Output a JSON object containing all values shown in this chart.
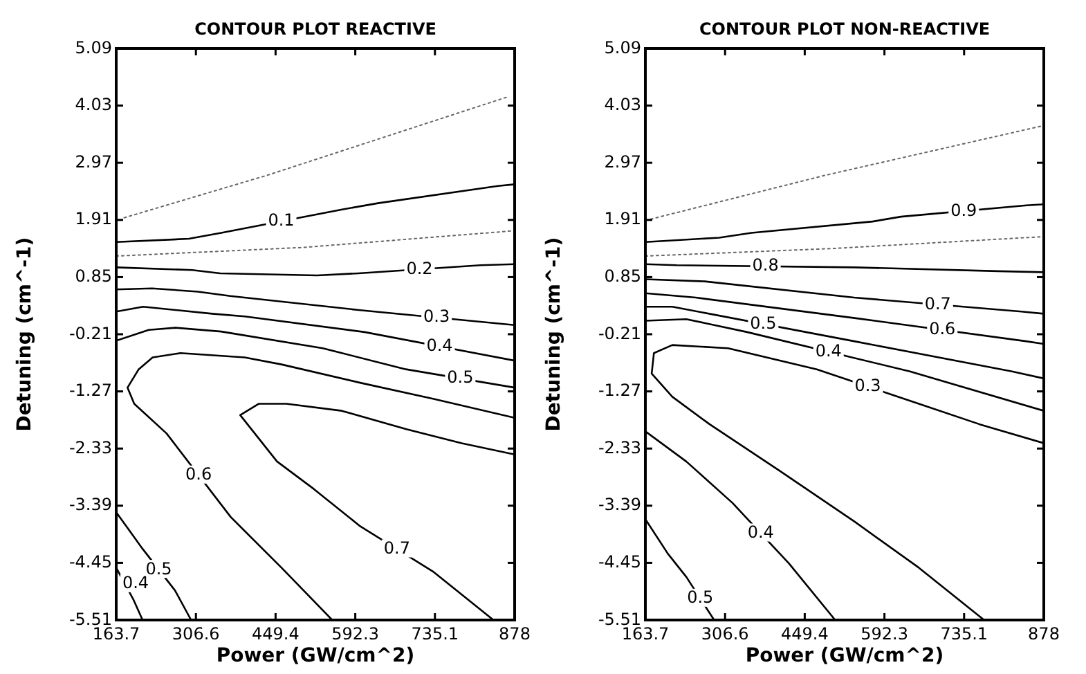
{
  "chart_data": [
    {
      "type": "line",
      "title": "CONTOUR PLOT REACTIVE",
      "xlabel": "Power (GW/cm^2)",
      "ylabel": "Detuning (cm^-1)",
      "xlim": [
        163.7,
        878
      ],
      "ylim": [
        -5.51,
        5.09
      ],
      "xticks": [
        163.7,
        306.6,
        449.4,
        592.3,
        735.1,
        878
      ],
      "yticks": [
        -5.51,
        -4.45,
        -3.39,
        -2.33,
        -1.27,
        -0.21,
        0.85,
        1.91,
        2.97,
        4.03,
        5.09
      ],
      "series": [
        {
          "name": "0.1",
          "color": "#000000",
          "line_style": "solid",
          "x": [
            163.7,
            294,
            352,
            567,
            633,
            848,
            878
          ],
          "values": [
            1.5,
            1.56,
            1.67,
            2.1,
            2.22,
            2.54,
            2.57
          ]
        },
        {
          "name": "0.2",
          "color": "#000000",
          "line_style": "solid",
          "x": [
            163.7,
            300,
            350,
            524,
            598,
            817,
            878
          ],
          "values": [
            1.03,
            0.98,
            0.92,
            0.88,
            0.92,
            1.07,
            1.09
          ]
        },
        {
          "name": "0.3",
          "color": "#000000",
          "line_style": "solid",
          "x": [
            163.7,
            228,
            310,
            368,
            598,
            878
          ],
          "values": [
            0.62,
            0.64,
            0.58,
            0.5,
            0.24,
            -0.04
          ]
        },
        {
          "name": "0.4",
          "color": "#000000",
          "line_style": "solid",
          "x": [
            163.7,
            212,
            336,
            394,
            609,
            878
          ],
          "values": [
            0.21,
            0.3,
            0.17,
            0.12,
            -0.17,
            -0.7
          ]
        },
        {
          "name": "0.5",
          "color": "#000000",
          "line_style": "solid",
          "x": [
            163.7,
            222,
            270,
            352,
            534,
            683,
            878
          ],
          "values": [
            -0.33,
            -0.13,
            -0.09,
            -0.16,
            -0.47,
            -0.86,
            -1.2
          ]
        },
        {
          "name": "0.6",
          "color": "#000000",
          "line_style": "solid",
          "x": [
            878,
            733,
            601,
            460,
            394,
            279,
            229,
            204,
            184,
            196,
            254,
            369,
            460,
            551
          ],
          "values": [
            -1.76,
            -1.41,
            -1.11,
            -0.77,
            -0.64,
            -0.56,
            -0.64,
            -0.86,
            -1.2,
            -1.5,
            -2.05,
            -3.6,
            -4.54,
            -5.51
          ]
        },
        {
          "name": "0.7",
          "color": "#000000",
          "line_style": "solid",
          "x": [
            878,
            783,
            684,
            568,
            469,
            419,
            386,
            452,
            518,
            601,
            733,
            840
          ],
          "values": [
            -2.44,
            -2.23,
            -1.97,
            -1.63,
            -1.5,
            -1.5,
            -1.71,
            -2.57,
            -3.08,
            -3.77,
            -4.62,
            -5.51
          ]
        },
        {
          "name": "0.5",
          "color": "#000000",
          "line_style": "solid",
          "x": [
            163.7,
            211,
            269,
            298
          ],
          "values": [
            -3.51,
            -4.19,
            -4.96,
            -5.51
          ]
        },
        {
          "name": "0.4",
          "color": "#000000",
          "line_style": "solid",
          "x": [
            163.7,
            195,
            211
          ],
          "values": [
            -4.54,
            -5.14,
            -5.51
          ]
        },
        {
          "color": "#666666",
          "line_style": "dotted",
          "x": [
            178,
            435,
            865
          ],
          "values": [
            1.95,
            2.74,
            4.19
          ]
        },
        {
          "color": "#666666",
          "line_style": "dotted",
          "x": [
            163.7,
            500,
            878
          ],
          "values": [
            1.24,
            1.4,
            1.71
          ]
        }
      ]
    },
    {
      "type": "line",
      "title": "CONTOUR PLOT NON-REACTIVE",
      "xlabel": "Power (GW/cm^2)",
      "ylabel": "Detuning (cm^-1)",
      "xlim": [
        163.7,
        878
      ],
      "ylim": [
        -5.51,
        5.09
      ],
      "xticks": [
        163.7,
        306.6,
        449.4,
        592.3,
        735.1,
        878
      ],
      "yticks": [
        -5.51,
        -4.45,
        -3.39,
        -2.33,
        -1.27,
        -0.21,
        0.85,
        1.91,
        2.97,
        4.03,
        5.09
      ],
      "series": [
        {
          "name": "0.9",
          "color": "#000000",
          "line_style": "solid",
          "x": [
            163.7,
            296,
            354,
            571,
            622,
            847,
            878
          ],
          "values": [
            1.5,
            1.58,
            1.67,
            1.88,
            1.97,
            2.18,
            2.2
          ]
        },
        {
          "name": "0.8",
          "color": "#000000",
          "line_style": "solid",
          "x": [
            163.7,
            220,
            538,
            796,
            878
          ],
          "values": [
            1.09,
            1.07,
            1.03,
            0.96,
            0.94
          ]
        },
        {
          "name": "0.7",
          "color": "#000000",
          "line_style": "solid",
          "x": [
            163.7,
            270,
            538,
            838,
            878
          ],
          "values": [
            0.81,
            0.77,
            0.47,
            0.21,
            0.17
          ]
        },
        {
          "name": "0.6",
          "color": "#000000",
          "line_style": "solid",
          "x": [
            163.7,
            254,
            546,
            846,
            878
          ],
          "values": [
            0.55,
            0.47,
            0.08,
            -0.34,
            -0.39
          ]
        },
        {
          "name": "0.5",
          "color": "#000000",
          "line_style": "solid",
          "x": [
            163.7,
            212,
            538,
            821,
            878
          ],
          "values": [
            0.3,
            0.3,
            -0.34,
            -0.9,
            -1.03
          ]
        },
        {
          "name": "0.4",
          "color": "#000000",
          "line_style": "solid",
          "x": [
            163.7,
            237,
            346,
            638,
            878
          ],
          "values": [
            0.04,
            0.07,
            -0.17,
            -0.9,
            -1.63
          ]
        },
        {
          "name": "0.3",
          "color": "#000000",
          "line_style": "solid",
          "x": [
            878,
            763,
            654,
            471,
            312,
            212,
            179,
            175,
            212,
            279,
            404,
            538,
            654,
            771
          ],
          "values": [
            -2.23,
            -1.88,
            -1.5,
            -0.86,
            -0.47,
            -0.41,
            -0.56,
            -0.94,
            -1.37,
            -1.88,
            -2.74,
            -3.68,
            -4.54,
            -5.51
          ]
        },
        {
          "name": "0.4",
          "color": "#000000",
          "line_style": "solid",
          "x": [
            163.7,
            237,
            320,
            421,
            504
          ],
          "values": [
            -2.01,
            -2.57,
            -3.34,
            -4.46,
            -5.51
          ]
        },
        {
          "name": "0.5",
          "color": "#000000",
          "line_style": "solid",
          "x": [
            163.7,
            204,
            237,
            287
          ],
          "values": [
            -3.64,
            -4.28,
            -4.71,
            -5.51
          ]
        },
        {
          "color": "#666666",
          "line_style": "dotted",
          "x": [
            163.7,
            487,
            878
          ],
          "values": [
            1.9,
            2.74,
            3.66
          ]
        },
        {
          "color": "#666666",
          "line_style": "dotted",
          "x": [
            163.7,
            500,
            878
          ],
          "values": [
            1.24,
            1.38,
            1.6
          ]
        }
      ]
    }
  ]
}
